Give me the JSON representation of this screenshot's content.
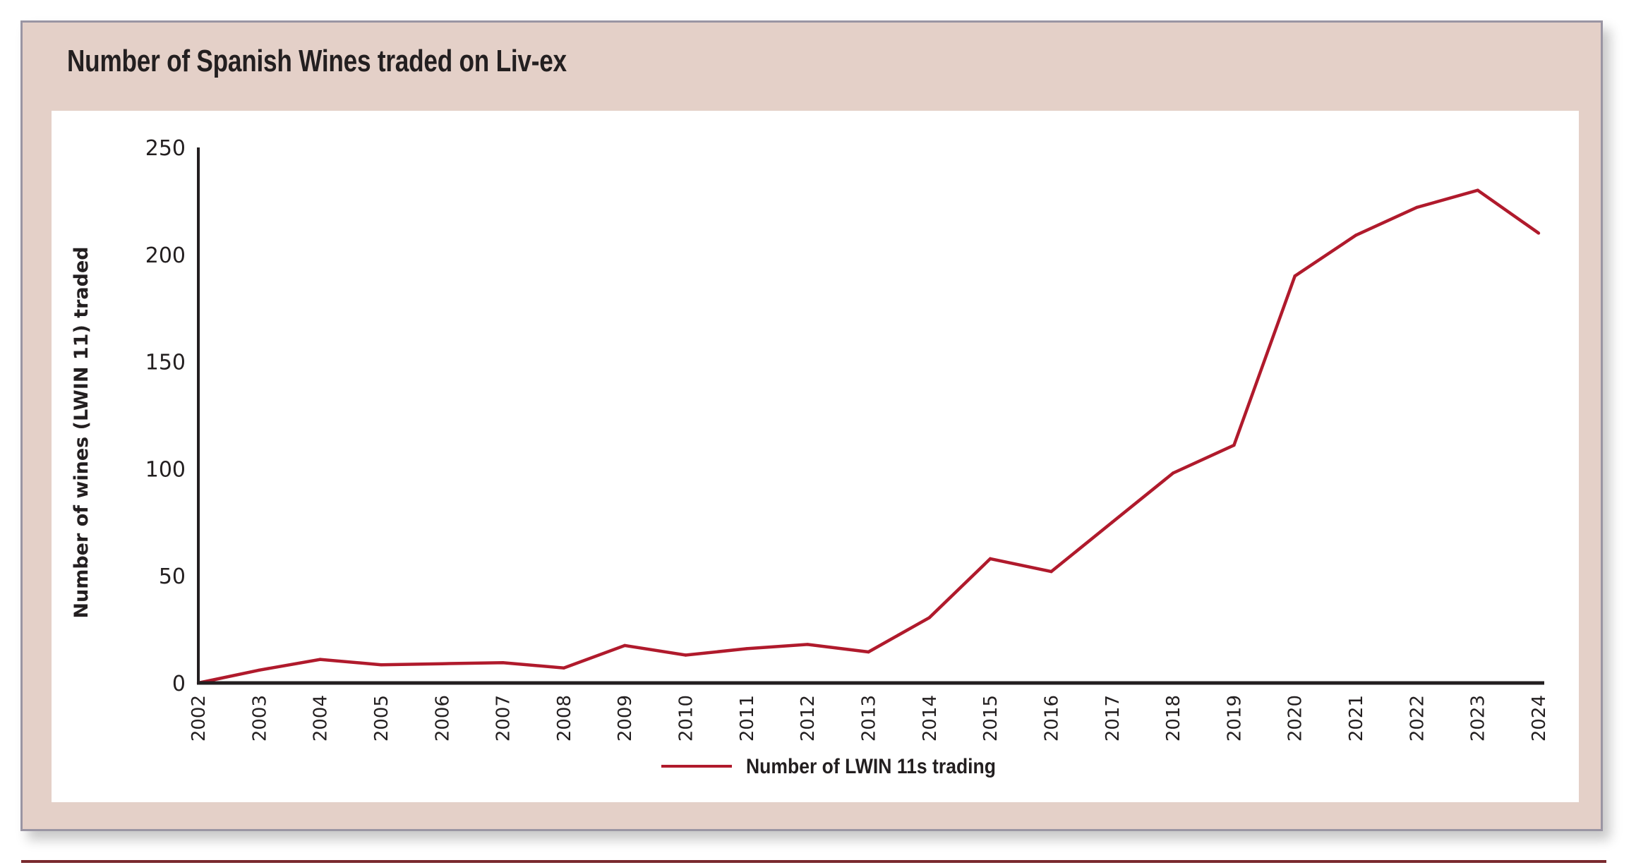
{
  "colors": {
    "panel_bg": "#e4d0c8",
    "panel_border": "#9a95a3",
    "series_line": "#b01a2c",
    "axis": "#231f20",
    "bottom_rule": "#7a2a2e"
  },
  "chart_data": {
    "type": "line",
    "title": "Number of Spanish Wines traded on Liv-ex",
    "xlabel": "",
    "ylabel": "Number of wines (LWIN 11) traded",
    "ylim": [
      0,
      250
    ],
    "yticks": [
      "0",
      "50",
      "100",
      "150",
      "200",
      "250"
    ],
    "ytick_values": [
      0,
      50,
      100,
      150,
      200,
      250
    ],
    "categories": [
      "2002",
      "2003",
      "2004",
      "2005",
      "2006",
      "2007",
      "2008",
      "2009",
      "2010",
      "2011",
      "2012",
      "2013",
      "2014",
      "2015",
      "2016",
      "2017",
      "2018",
      "2019",
      "2020",
      "2021",
      "2022",
      "2023",
      "2024"
    ],
    "grid": false,
    "legend_position": "bottom-center",
    "series": [
      {
        "name": "Number of LWIN 11s trading",
        "values": [
          0,
          6,
          11,
          8.5,
          9,
          9.5,
          7,
          17.5,
          13,
          16,
          18,
          14.5,
          30.5,
          58,
          52,
          75,
          98,
          111,
          190,
          209,
          222,
          230,
          210
        ]
      }
    ]
  }
}
